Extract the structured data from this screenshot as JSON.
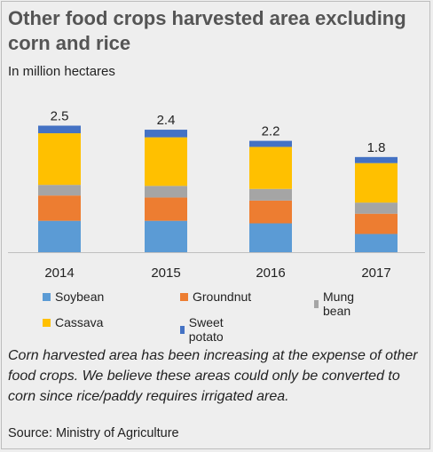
{
  "title": "Other food crops harvested area excluding corn and rice",
  "subtitle": "In million hectares",
  "note": "Corn harvested area has been increasing at the expense of other food crops. We believe these areas could only be converted to corn since rice/paddy requires irrigated area.",
  "source": "Source: Ministry of Agriculture",
  "chart_data": {
    "type": "bar",
    "stacked": true,
    "categories": [
      "2014",
      "2015",
      "2016",
      "2017"
    ],
    "totals": [
      "2.5",
      "2.4",
      "2.2",
      "1.8"
    ],
    "series": [
      {
        "name": "Soybean",
        "color": "#5b9bd5",
        "values": [
          0.62,
          0.62,
          0.57,
          0.36
        ]
      },
      {
        "name": "Groundnut",
        "color": "#ed7d31",
        "values": [
          0.5,
          0.46,
          0.45,
          0.4
        ]
      },
      {
        "name": "Mung bean",
        "color": "#a5a5a5",
        "values": [
          0.21,
          0.23,
          0.23,
          0.22
        ]
      },
      {
        "name": "Cassava",
        "color": "#ffc000",
        "values": [
          1.02,
          0.96,
          0.83,
          0.78
        ]
      },
      {
        "name": "Sweet potato",
        "color": "#4472c4",
        "values": [
          0.15,
          0.15,
          0.12,
          0.12
        ]
      }
    ],
    "legend_position": "bottom",
    "grid": false
  }
}
